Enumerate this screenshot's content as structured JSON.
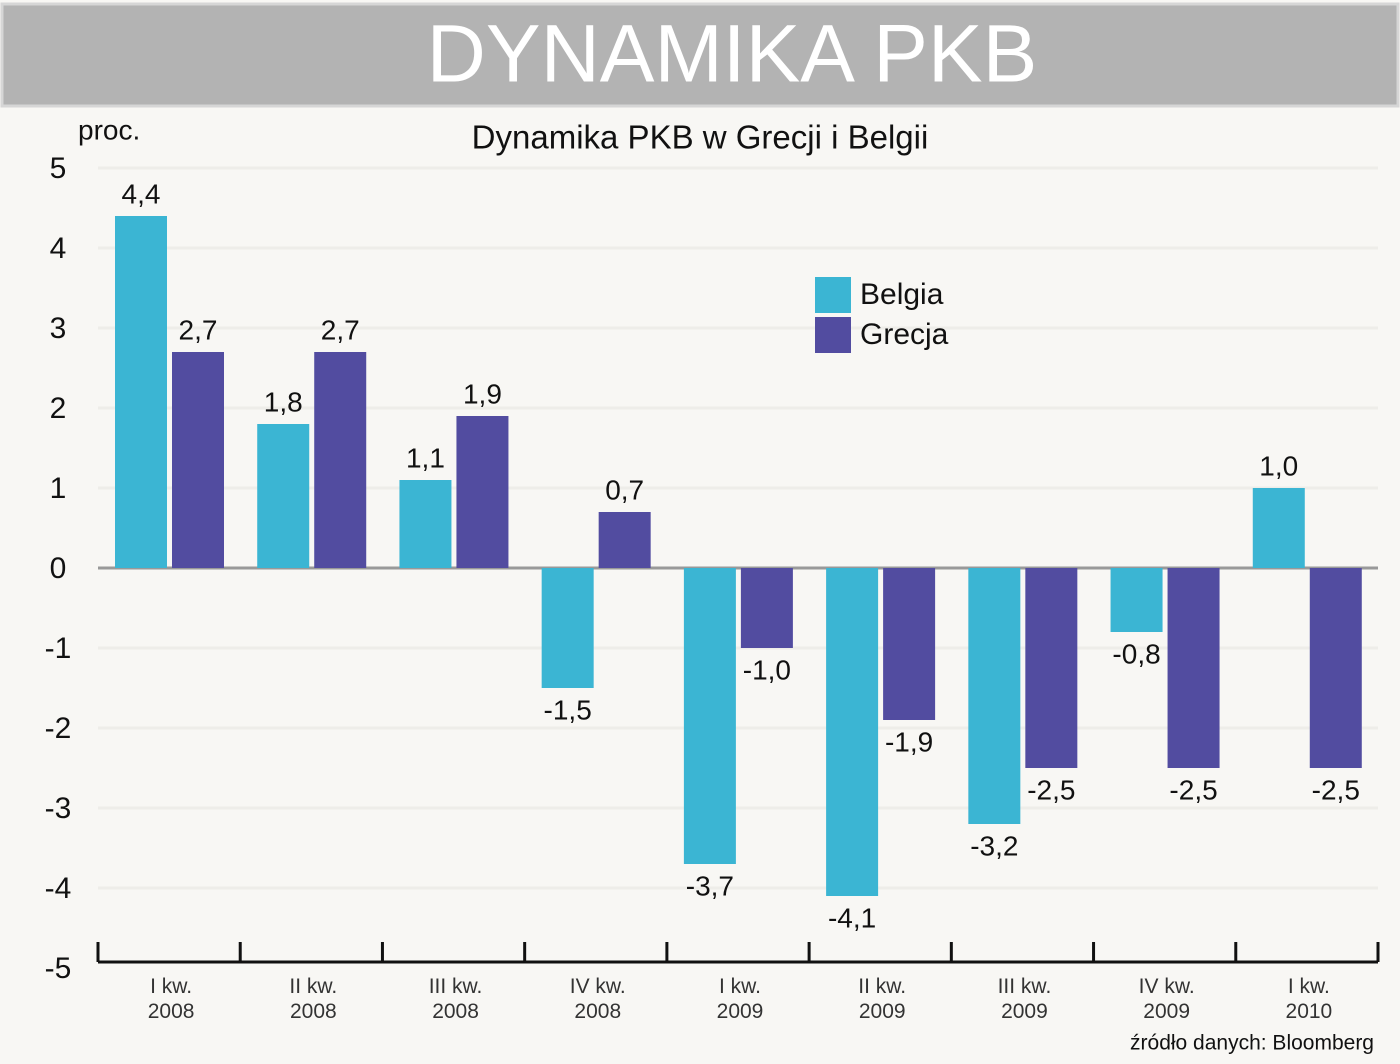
{
  "header": "DYNAMIKA PKB",
  "chart_data": {
    "type": "bar",
    "title": "Dynamika PKB w Grecji i Belgii",
    "y_label": "proc.",
    "source": "źródło danych: Bloomberg",
    "categories": [
      "I kw.\n2008",
      "II kw.\n2008",
      "III kw.\n2008",
      "IV kw.\n2008",
      "I kw.\n2009",
      "II kw.\n2009",
      "III kw.\n2009",
      "IV kw.\n2009",
      "I kw.\n2010"
    ],
    "series": [
      {
        "name": "Belgia",
        "color": "#3bb5d3",
        "values": [
          4.4,
          1.8,
          1.1,
          -1.5,
          -3.7,
          -4.1,
          -3.2,
          -0.8,
          1.0
        ],
        "value_labels": [
          "4,4",
          "1,8",
          "1,1",
          "-1,5",
          "-3,7",
          "-4,1",
          "-3,2",
          "-0,8",
          "1,0"
        ]
      },
      {
        "name": "Grecja",
        "color": "#524ca0",
        "values": [
          2.7,
          2.7,
          1.9,
          0.7,
          -1.0,
          -1.9,
          -2.5,
          -2.5,
          -2.5
        ],
        "value_labels": [
          "2,7",
          "2,7",
          "1,9",
          "0,7",
          "-1,0",
          "-1,9",
          "-2,5",
          "-2,5",
          "-2,5"
        ]
      }
    ],
    "ylim": [
      -5,
      5
    ],
    "yticks": [
      -5,
      -4,
      -3,
      -2,
      -1,
      0,
      1,
      2,
      3,
      4,
      5
    ],
    "grid": true
  }
}
